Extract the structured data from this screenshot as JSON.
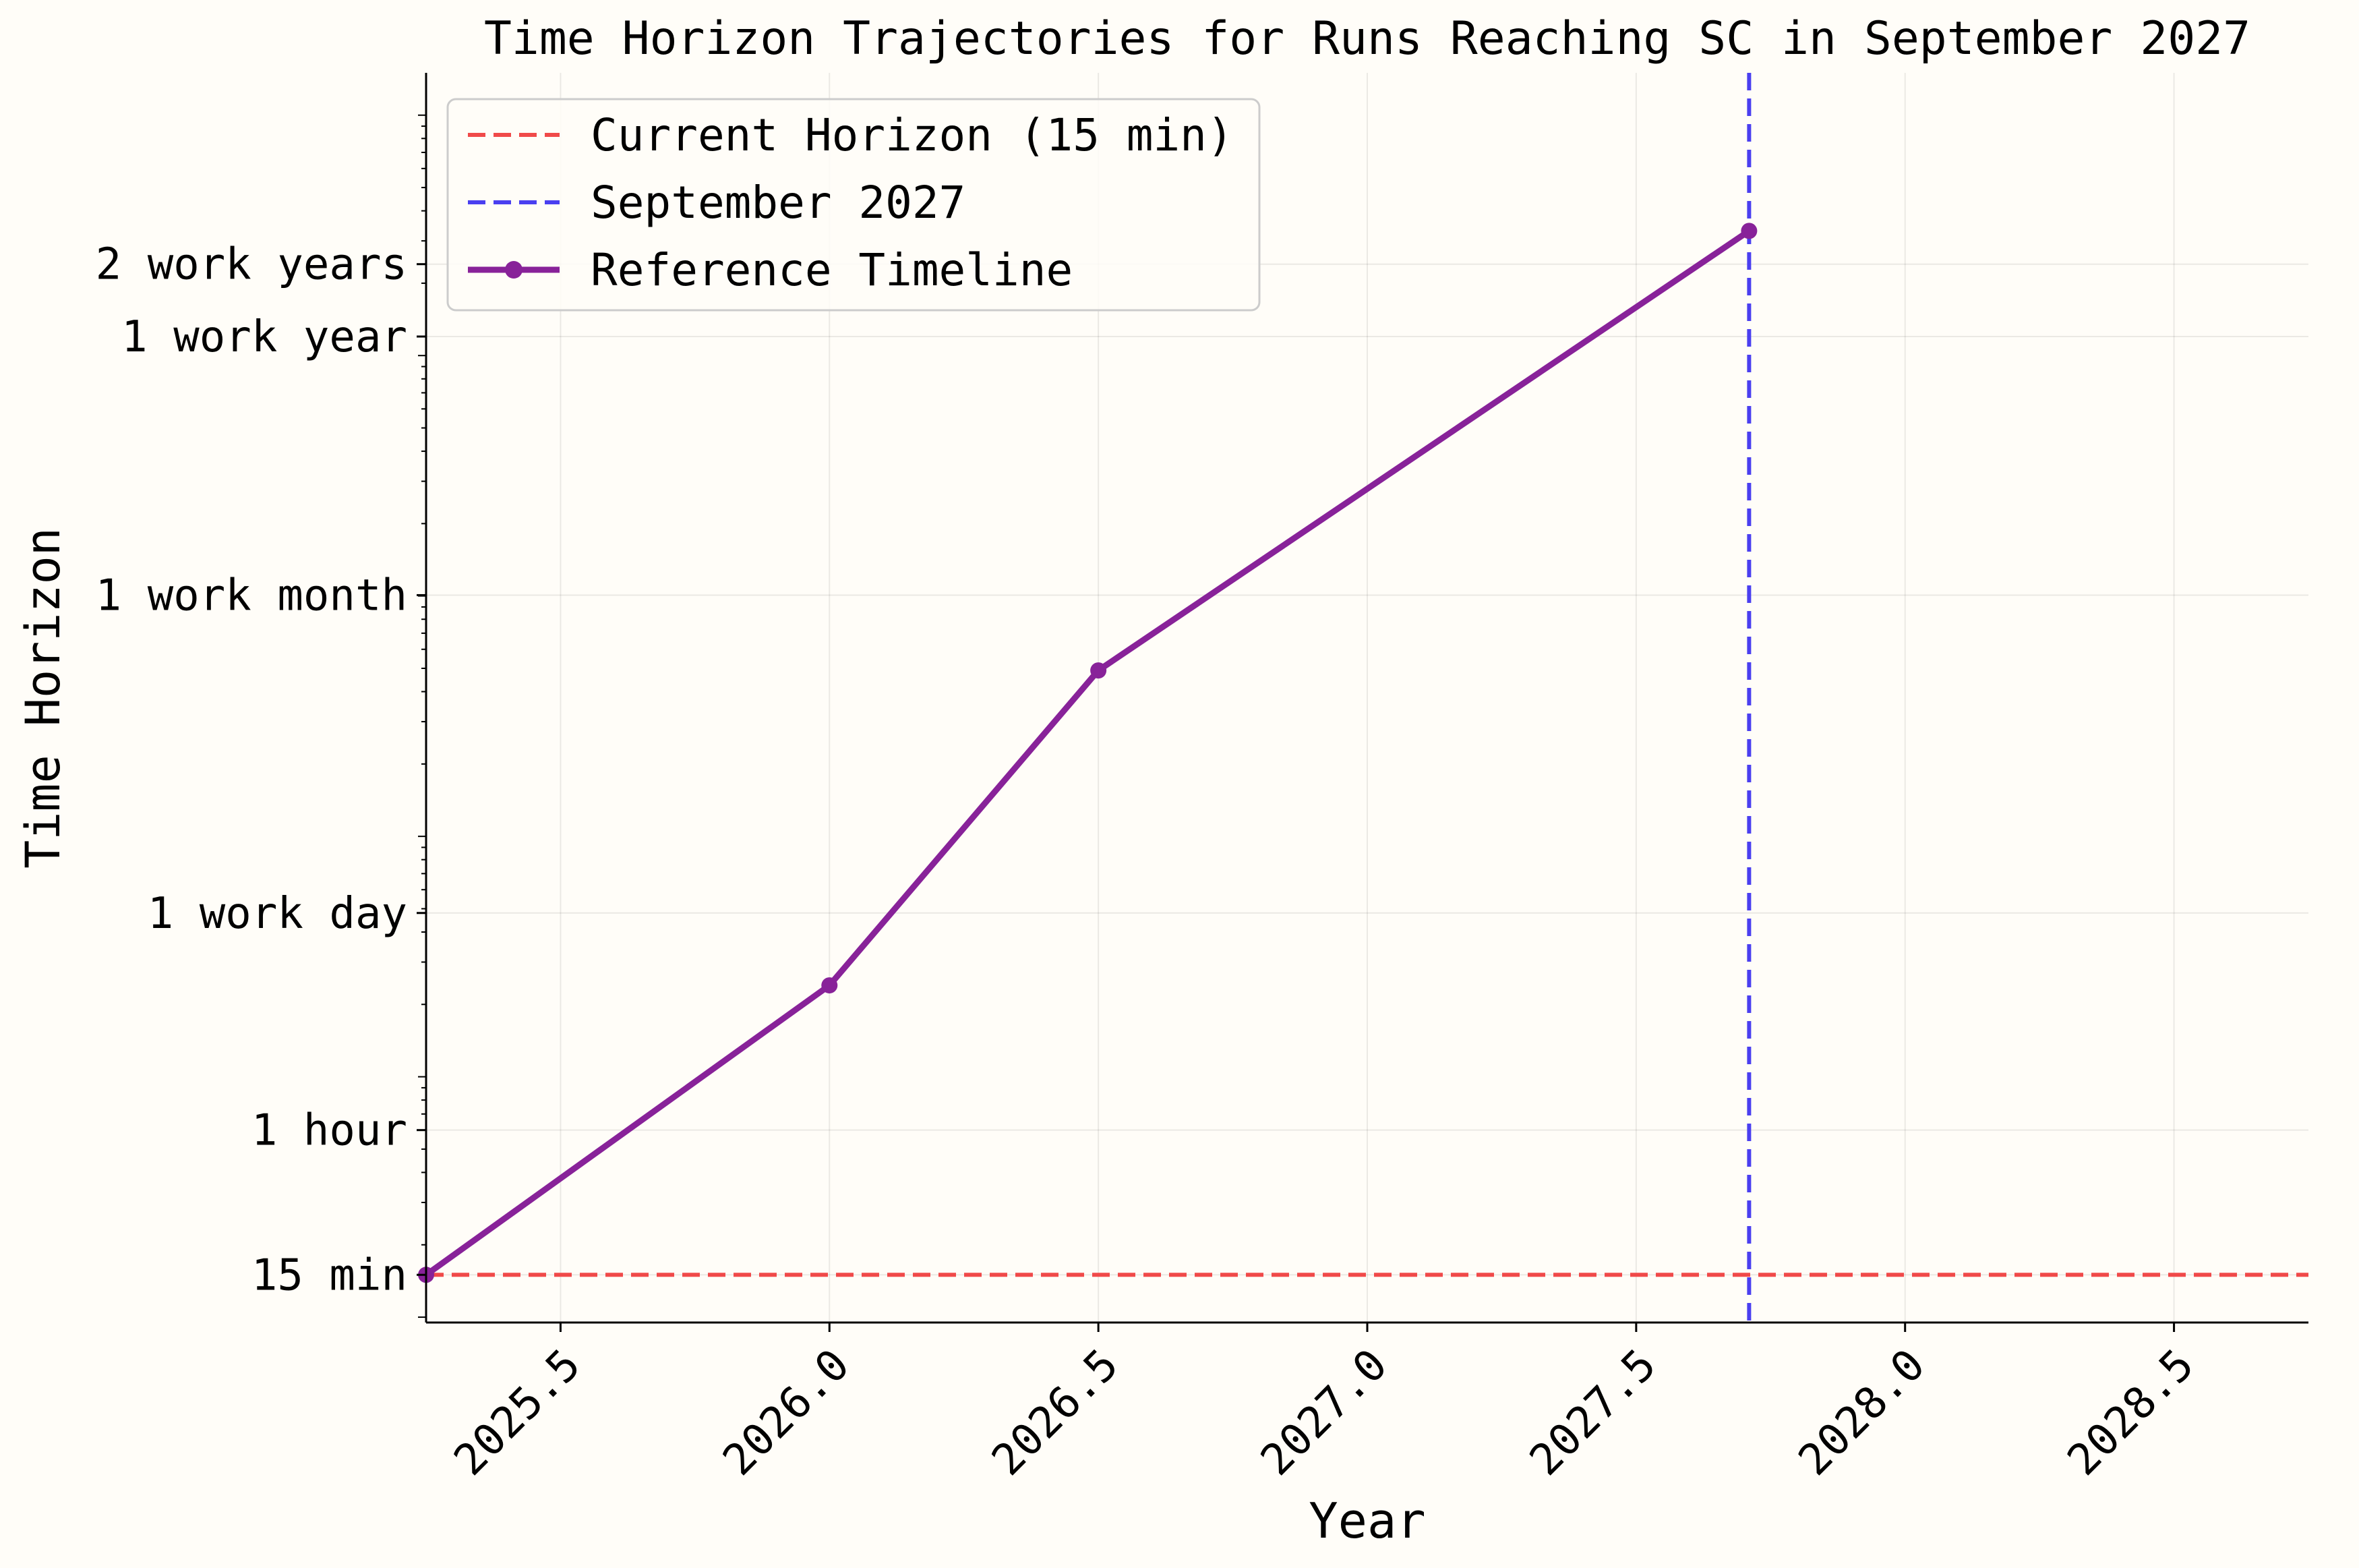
{
  "chart_data": {
    "type": "line",
    "title": "Time Horizon Trajectories for Runs Reaching SC in September 2027",
    "xlabel": "Year",
    "ylabel": "Time Horizon",
    "xlim": [
      2025.25,
      2028.75
    ],
    "ylim_minutes": [
      9.5,
      1500000
    ],
    "y_scale": "log",
    "grid": true,
    "legend_position": "top-left",
    "x_ticks": [
      {
        "value": 2025.5,
        "label": "2025.5"
      },
      {
        "value": 2026.0,
        "label": "2026.0"
      },
      {
        "value": 2026.5,
        "label": "2026.5"
      },
      {
        "value": 2027.0,
        "label": "2027.0"
      },
      {
        "value": 2027.5,
        "label": "2027.5"
      },
      {
        "value": 2028.0,
        "label": "2028.0"
      },
      {
        "value": 2028.5,
        "label": "2028.5"
      }
    ],
    "y_ticks": [
      {
        "minutes": 15,
        "label": "15 min"
      },
      {
        "minutes": 60,
        "label": "1 hour"
      },
      {
        "minutes": 480,
        "label": "1 work day"
      },
      {
        "minutes": 10080,
        "label": "1 work month"
      },
      {
        "minutes": 120000,
        "label": "1 work year"
      },
      {
        "minutes": 240000,
        "label": "2 work years"
      }
    ],
    "series": [
      {
        "name": "Reference Timeline",
        "color": "#882299",
        "x": [
          2025.25,
          2026.0,
          2026.5,
          2027.71
        ],
        "y_minutes": [
          15,
          240,
          4900,
          330000
        ]
      }
    ],
    "reference_lines": [
      {
        "name": "Current Horizon (15 min)",
        "orientation": "horizontal",
        "y_minutes": 15,
        "color": "#f04a4a"
      },
      {
        "name": "September 2027",
        "orientation": "vertical",
        "x": 2027.71,
        "color": "#4a3ff0"
      }
    ],
    "legend": [
      {
        "label": "Current Horizon (15 min)",
        "style": "dashed",
        "color": "#f04a4a"
      },
      {
        "label": "September 2027",
        "style": "dashed",
        "color": "#4a3ff0"
      },
      {
        "label": "Reference Timeline",
        "style": "solid-marker",
        "color": "#882299"
      }
    ]
  }
}
